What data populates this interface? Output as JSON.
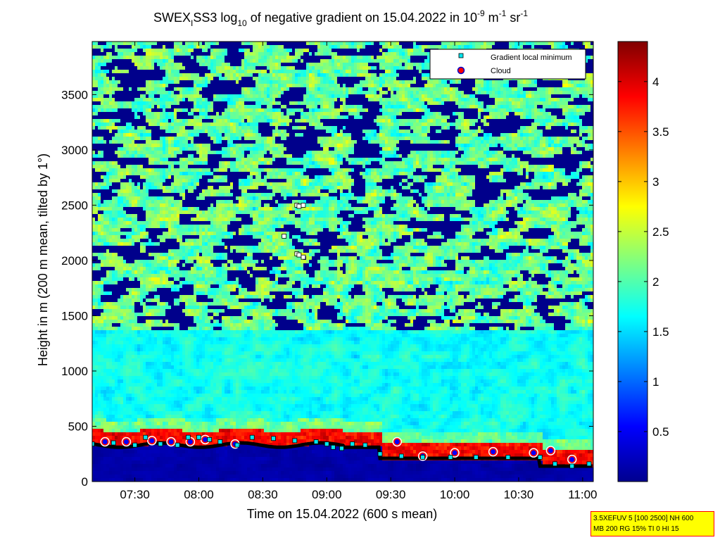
{
  "chart_data": {
    "type": "heatmap",
    "title_parts": [
      "SWEX",
      "I",
      "SS3 log",
      "10",
      " of negative gradient on 15.04.2022 in 10",
      "-9",
      " m",
      "-1",
      " sr",
      "-1"
    ],
    "xlabel": "Time on 15.04.2022 (600 s mean)",
    "ylabel": "Height in m (200 m mean, tilted by 1°)",
    "x_range_minutes": [
      430,
      665
    ],
    "x_ticks": [
      {
        "minute": 450,
        "label": "07:30"
      },
      {
        "minute": 480,
        "label": "08:00"
      },
      {
        "minute": 510,
        "label": "08:30"
      },
      {
        "minute": 540,
        "label": "09:00"
      },
      {
        "minute": 570,
        "label": "09:30"
      },
      {
        "minute": 600,
        "label": "10:00"
      },
      {
        "minute": 630,
        "label": "10:30"
      },
      {
        "minute": 660,
        "label": "11:00"
      }
    ],
    "ylim": [
      0,
      3980
    ],
    "y_ticks": [
      0,
      500,
      1000,
      1500,
      2000,
      2500,
      3000,
      3500
    ],
    "colorbar": {
      "range": [
        0,
        4.4
      ],
      "ticks": [
        0.5,
        1,
        1.5,
        2,
        2.5,
        3,
        3.5,
        4
      ],
      "colormap": "jet"
    },
    "legend": {
      "position": "top-right",
      "entries": [
        {
          "label": "Gradient local minimum",
          "marker": "square",
          "color": "#00e5ee"
        },
        {
          "label": "Cloud",
          "marker": "circle",
          "color": "#ff0000"
        }
      ]
    },
    "gradient_local_minimum": [
      {
        "t": 430,
        "h": 340
      },
      {
        "t": 440,
        "h": 350
      },
      {
        "t": 450,
        "h": 330
      },
      {
        "t": 455,
        "h": 400
      },
      {
        "t": 462,
        "h": 340
      },
      {
        "t": 470,
        "h": 330
      },
      {
        "t": 475,
        "h": 400
      },
      {
        "t": 480,
        "h": 400
      },
      {
        "t": 485,
        "h": 380
      },
      {
        "t": 490,
        "h": 360
      },
      {
        "t": 498,
        "h": 330
      },
      {
        "t": 505,
        "h": 400
      },
      {
        "t": 515,
        "h": 390
      },
      {
        "t": 525,
        "h": 370
      },
      {
        "t": 535,
        "h": 360
      },
      {
        "t": 540,
        "h": 340
      },
      {
        "t": 543,
        "h": 310
      },
      {
        "t": 547,
        "h": 300
      },
      {
        "t": 552,
        "h": 340
      },
      {
        "t": 558,
        "h": 330
      },
      {
        "t": 565,
        "h": 250
      },
      {
        "t": 575,
        "h": 230
      },
      {
        "t": 585,
        "h": 220
      },
      {
        "t": 598,
        "h": 220
      },
      {
        "t": 610,
        "h": 220
      },
      {
        "t": 625,
        "h": 220
      },
      {
        "t": 640,
        "h": 220
      },
      {
        "t": 647,
        "h": 160
      },
      {
        "t": 655,
        "h": 140
      },
      {
        "t": 663,
        "h": 160
      },
      {
        "t": 526,
        "h": 2500
      },
      {
        "t": 527,
        "h": 2490
      },
      {
        "t": 529,
        "h": 2500
      },
      {
        "t": 520,
        "h": 2220
      },
      {
        "t": 526,
        "h": 2060
      },
      {
        "t": 527,
        "h": 2050
      },
      {
        "t": 529,
        "h": 2030
      }
    ],
    "cloud": [
      {
        "t": 436,
        "h": 360
      },
      {
        "t": 446,
        "h": 360
      },
      {
        "t": 458,
        "h": 370
      },
      {
        "t": 467,
        "h": 360
      },
      {
        "t": 476,
        "h": 360
      },
      {
        "t": 483,
        "h": 380
      },
      {
        "t": 497,
        "h": 340
      },
      {
        "t": 573,
        "h": 360
      },
      {
        "t": 585,
        "h": 230
      },
      {
        "t": 600,
        "h": 260
      },
      {
        "t": 618,
        "h": 270
      },
      {
        "t": 637,
        "h": 260
      },
      {
        "t": 645,
        "h": 280
      },
      {
        "t": 655,
        "h": 200
      }
    ]
  },
  "info_box": {
    "line1": "3.5XEFUV 5 [100 2500] NH 600",
    "line2": "MB 200 RG 15% TI 0 HI 15"
  }
}
